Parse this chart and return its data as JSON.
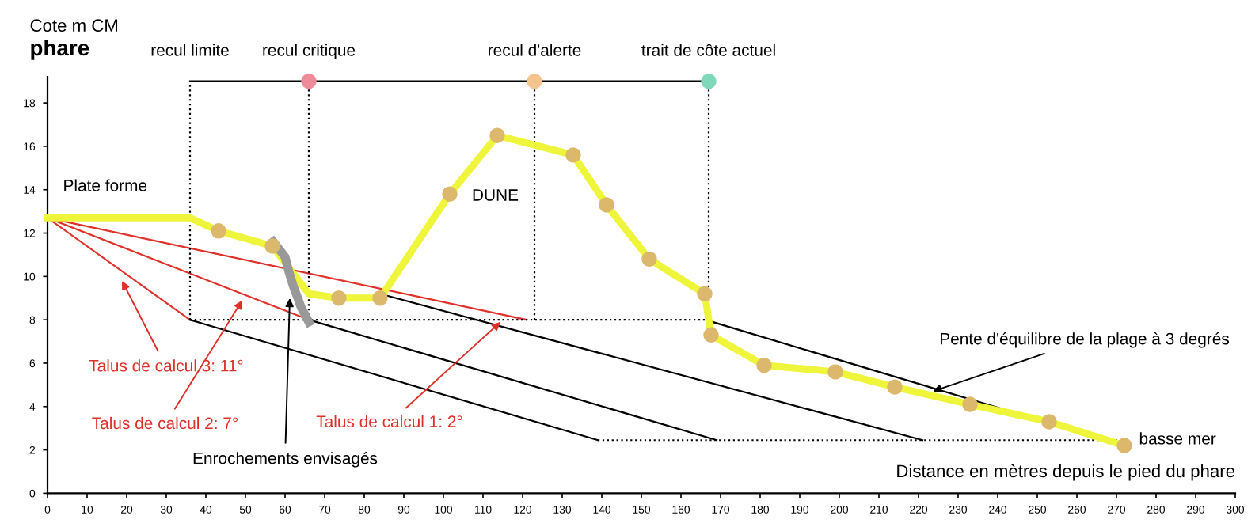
{
  "chart_data": {
    "type": "line",
    "title": "phare",
    "ylabel": "Cote m CM",
    "xlabel": "Distance en mètres depuis le pied du phare",
    "xlim": [
      0,
      300
    ],
    "xticks": [
      0,
      10,
      20,
      30,
      40,
      50,
      60,
      70,
      80,
      90,
      100,
      110,
      120,
      130,
      140,
      150,
      160,
      170,
      180,
      190,
      200,
      210,
      220,
      230,
      240,
      250,
      260,
      270,
      280,
      290,
      300
    ],
    "ylim": [
      0,
      19.2
    ],
    "yticks": [
      0,
      2,
      4,
      6,
      8,
      10,
      12,
      14,
      16,
      18
    ],
    "grid": false,
    "series": [
      {
        "color": "#eef53a",
        "x": [
          0,
          36,
          43.2,
          56.8,
          66,
          73.6,
          84,
          101.6,
          113.6,
          132.8,
          141.2,
          152,
          166,
          167.6,
          181,
          199,
          214,
          233,
          253,
          272
        ],
        "values": [
          12.7,
          12.7,
          12.1,
          11.4,
          9.2,
          9.0,
          9.0,
          13.8,
          16.5,
          15.6,
          13.3,
          10.8,
          9.2,
          7.3,
          5.9,
          5.6,
          4.9,
          4.1,
          3.3,
          2.2
        ]
      },
      {
        "type": "scatter",
        "color": "#dbb86b",
        "x": [
          43.2,
          56.8,
          73.6,
          84,
          101.6,
          113.6,
          132.8,
          141.2,
          152,
          166,
          167.6,
          181,
          199,
          214,
          233,
          253,
          272
        ],
        "values": [
          12.1,
          11.4,
          9.0,
          9.0,
          13.8,
          16.5,
          15.6,
          13.3,
          10.8,
          9.2,
          7.3,
          5.9,
          5.6,
          4.9,
          4.1,
          3.3,
          2.2
        ]
      },
      {
        "type": "line",
        "color": "#999999",
        "x": [
          57,
          60,
          61,
          62,
          64,
          66
        ],
        "values": [
          11.6,
          10.9,
          10.2,
          9.6,
          8.6,
          7.9
        ]
      },
      {
        "type": "line",
        "color": "#e0302a",
        "x": [
          0,
          36
        ],
        "values": [
          12.7,
          8.0
        ]
      },
      {
        "type": "line",
        "color": "#e0302a",
        "x": [
          0,
          66
        ],
        "values": [
          12.7,
          8.0
        ]
      },
      {
        "type": "line",
        "color": "#e0302a",
        "x": [
          0,
          121
        ],
        "values": [
          12.7,
          8.0
        ]
      },
      {
        "type": "line",
        "color": "#000000",
        "x": [
          36,
          139
        ],
        "values": [
          8.0,
          2.45
        ]
      },
      {
        "type": "line",
        "color": "#000000",
        "x": [
          66,
          169
        ],
        "values": [
          8.0,
          2.45
        ]
      },
      {
        "type": "line",
        "color": "#000000",
        "x": [
          86,
          221
        ],
        "values": [
          9.1,
          2.45
        ]
      },
      {
        "type": "line",
        "color": "#000000",
        "x": [
          168,
          272
        ],
        "values": [
          7.9,
          2.2
        ]
      },
      {
        "type": "line",
        "color": "#000000",
        "line_style": "dotted",
        "x": [
          36,
          167
        ],
        "values": [
          8.0,
          8.0
        ]
      },
      {
        "type": "line",
        "color": "#000000",
        "line_style": "dotted",
        "x": [
          139,
          272
        ],
        "values": [
          2.45,
          2.45
        ]
      },
      {
        "type": "line",
        "color": "#000000",
        "line_style": "dotted",
        "x": [
          36,
          36
        ],
        "values": [
          8.0,
          19
        ]
      },
      {
        "type": "line",
        "color": "#000000",
        "line_style": "dotted",
        "x": [
          66,
          66
        ],
        "values": [
          8.0,
          19
        ]
      },
      {
        "type": "line",
        "color": "#000000",
        "line_style": "dotted",
        "x": [
          123,
          123
        ],
        "values": [
          8.0,
          19
        ]
      },
      {
        "type": "line",
        "color": "#000000",
        "line_style": "dotted",
        "x": [
          167,
          167
        ],
        "values": [
          8.0,
          19
        ]
      },
      {
        "type": "line",
        "color": "#000000",
        "x": [
          167,
          36
        ],
        "values": [
          19,
          19
        ]
      },
      {
        "type": "scatter",
        "colors": [
          "#ee8c99",
          "#f4c48e",
          "#7fd8b9"
        ],
        "x": [
          66,
          123,
          167
        ],
        "values": [
          19,
          19,
          19
        ]
      }
    ],
    "annotations": [
      "Plate forme",
      "DUNE",
      {
        "text": "recul limite",
        "x": 36,
        "y": 19
      },
      {
        "text": "recul critique",
        "x": 66,
        "y": 19
      },
      {
        "text": "recul d'alerte",
        "x": 123,
        "y": 19
      },
      {
        "text": "trait de côte actuel",
        "x": 167,
        "y": 19
      },
      {
        "text": "Talus de calcul 3: 11°",
        "x": 18.8,
        "y": 9.8
      },
      {
        "text": "Talus de calcul 2: 7°",
        "x": 49.2,
        "y": 8.9
      },
      {
        "text": "Talus de calcul 1: 2°",
        "x": 114.4,
        "y": 7.9
      },
      {
        "text": "Enrochements envisagés",
        "x": 61.2,
        "y": 9.0
      },
      {
        "text": "Pente d'équilibre de la plage à 3 degrés",
        "x": 223.6,
        "y": 4.7
      },
      "basse mer"
    ]
  }
}
